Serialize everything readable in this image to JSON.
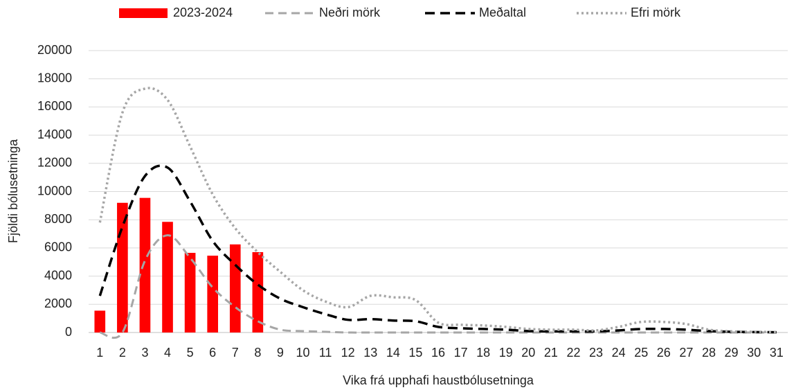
{
  "chart_data": {
    "type": "bar_line",
    "x_label": "Vika frá upphafi haustbólusetninga",
    "y_label": "Fjöldi bólusetninga",
    "categories": [
      "1",
      "2",
      "3",
      "4",
      "5",
      "6",
      "7",
      "8",
      "9",
      "10",
      "11",
      "12",
      "13",
      "14",
      "15",
      "16",
      "17",
      "18",
      "19",
      "20",
      "21",
      "22",
      "23",
      "24",
      "25",
      "26",
      "27",
      "28",
      "29",
      "30",
      "31"
    ],
    "series": [
      {
        "name": "2023-2024",
        "kind": "bar",
        "color": "#ff0000",
        "values": [
          1550,
          9200,
          9550,
          7850,
          5650,
          5450,
          6250,
          5700,
          null,
          null,
          null,
          null,
          null,
          null,
          null,
          null,
          null,
          null,
          null,
          null,
          null,
          null,
          null,
          null,
          null,
          null,
          null,
          null,
          null,
          null,
          null
        ]
      },
      {
        "name": "Neðri mörk",
        "kind": "line",
        "style": "dashed",
        "color": "#a6a6a6",
        "values": [
          0,
          0,
          5100,
          6900,
          5300,
          3200,
          1800,
          800,
          200,
          100,
          50,
          0,
          0,
          0,
          0,
          0,
          0,
          0,
          0,
          0,
          0,
          0,
          0,
          0,
          0,
          0,
          0,
          0,
          0,
          0,
          0
        ]
      },
      {
        "name": "Meðaltal",
        "kind": "line",
        "style": "dashed-bold",
        "color": "#000000",
        "values": [
          2600,
          7500,
          11100,
          11700,
          9300,
          6500,
          4800,
          3400,
          2400,
          1800,
          1300,
          900,
          950,
          850,
          800,
          400,
          300,
          250,
          200,
          100,
          80,
          80,
          80,
          150,
          250,
          250,
          200,
          100,
          50,
          30,
          20
        ]
      },
      {
        "name": "Efri mörk",
        "kind": "line",
        "style": "dotted",
        "color": "#a6a6a6",
        "values": [
          7800,
          15600,
          17300,
          16500,
          13200,
          9800,
          7400,
          5700,
          4300,
          3000,
          2200,
          1800,
          2600,
          2500,
          2300,
          700,
          550,
          500,
          400,
          250,
          200,
          200,
          150,
          400,
          750,
          750,
          600,
          200,
          80,
          50,
          30
        ]
      }
    ],
    "ylim": [
      0,
      20000
    ],
    "yticks": [
      0,
      2000,
      4000,
      6000,
      8000,
      10000,
      12000,
      14000,
      16000,
      18000,
      20000
    ],
    "grid": true,
    "legend": "top"
  }
}
